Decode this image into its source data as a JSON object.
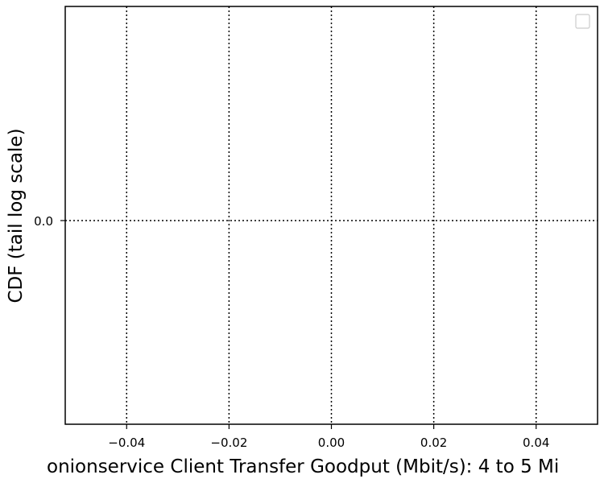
{
  "chart_data": {
    "type": "line",
    "title": "",
    "xlabel": "onionservice Client Transfer Goodput (Mbit/s): 4 to 5 Mi",
    "ylabel": "CDF (tail log scale)",
    "xlim": [
      -0.052,
      0.052
    ],
    "x_ticks": [
      -0.04,
      -0.02,
      0.0,
      0.02,
      0.04
    ],
    "x_tick_labels": [
      "−0.04",
      "−0.02",
      "0.00",
      "0.02",
      "0.04"
    ],
    "y_ticks": [
      0.0
    ],
    "y_tick_labels": [
      "0.0"
    ],
    "grid": true,
    "grid_style": "dotted",
    "legend": {
      "placement": "top-right",
      "entries": []
    },
    "series": []
  }
}
